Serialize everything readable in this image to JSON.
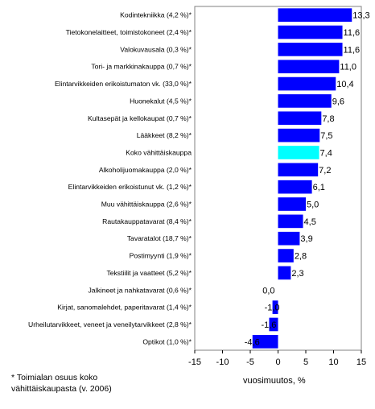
{
  "chart_data": {
    "type": "bar",
    "orientation": "horizontal",
    "categories": [
      "Kodintekniikka (4,2 %)*",
      "Tietokonelaitteet, toimistokoneet (2,4 %)*",
      "Valokuvausala (0,3 %)*",
      "Tori- ja markkinakauppa (0,7 %)*",
      "Elintarvikkeiden erikoistumaton vk. (33,0 %)*",
      "Huonekalut (4,5 %)*",
      "Kultasepät ja kellokaupat (0,7 %)*",
      "Lääkkeet (8,2 %)*",
      "Koko vähittäiskauppa",
      "Alkoholijuomakauppa (2,0 %)*",
      "Elintarvikkeiden erikoistunut vk. (1,2 %)*",
      "Muu vähittäiskauppa (2,6 %)*",
      "Rautakauppatavarat (8,4 %)*",
      "Tavaratalot (18,7 %)*",
      "Postimyynti (1,9 %)*",
      "Tekstiilit ja vaatteet (5,2 %)*",
      "Jalkineet ja nahkatavarat (0,6 %)*",
      "Kirjat, sanomalehdet, paperitavarat (1,4 %)*",
      "Urheilutarvikkeet, veneet ja veneilytarvikkeet (2,8 %)*",
      "Optikot (1,0 %)*"
    ],
    "values": [
      13.3,
      11.6,
      11.6,
      11.0,
      10.4,
      9.6,
      7.8,
      7.5,
      7.4,
      7.2,
      6.1,
      5.0,
      4.5,
      3.9,
      2.8,
      2.3,
      0.0,
      -1.0,
      -1.6,
      -4.6
    ],
    "value_labels": [
      "13,3",
      "11,6",
      "11,6",
      "11,0",
      "10,4",
      "9,6",
      "7,8",
      "7,5",
      "7,4",
      "7,2",
      "6,1",
      "5,0",
      "4,5",
      "3,9",
      "2,8",
      "2,3",
      "0,0",
      "-1,0",
      "-1,6",
      "-4,6"
    ],
    "highlight_category": "Koko vähittäiskauppa",
    "xlim": [
      -15,
      15
    ],
    "xticks": [
      -15,
      -10,
      -5,
      0,
      5,
      10,
      15
    ],
    "xlabel": "vuosimuutos, %",
    "colors": {
      "bar": "#0000ff",
      "highlight": "#00ffff",
      "frame": "#808080"
    },
    "footnote": "* Toimialan osuus koko\n  vähittäiskaupasta (v. 2006)"
  }
}
